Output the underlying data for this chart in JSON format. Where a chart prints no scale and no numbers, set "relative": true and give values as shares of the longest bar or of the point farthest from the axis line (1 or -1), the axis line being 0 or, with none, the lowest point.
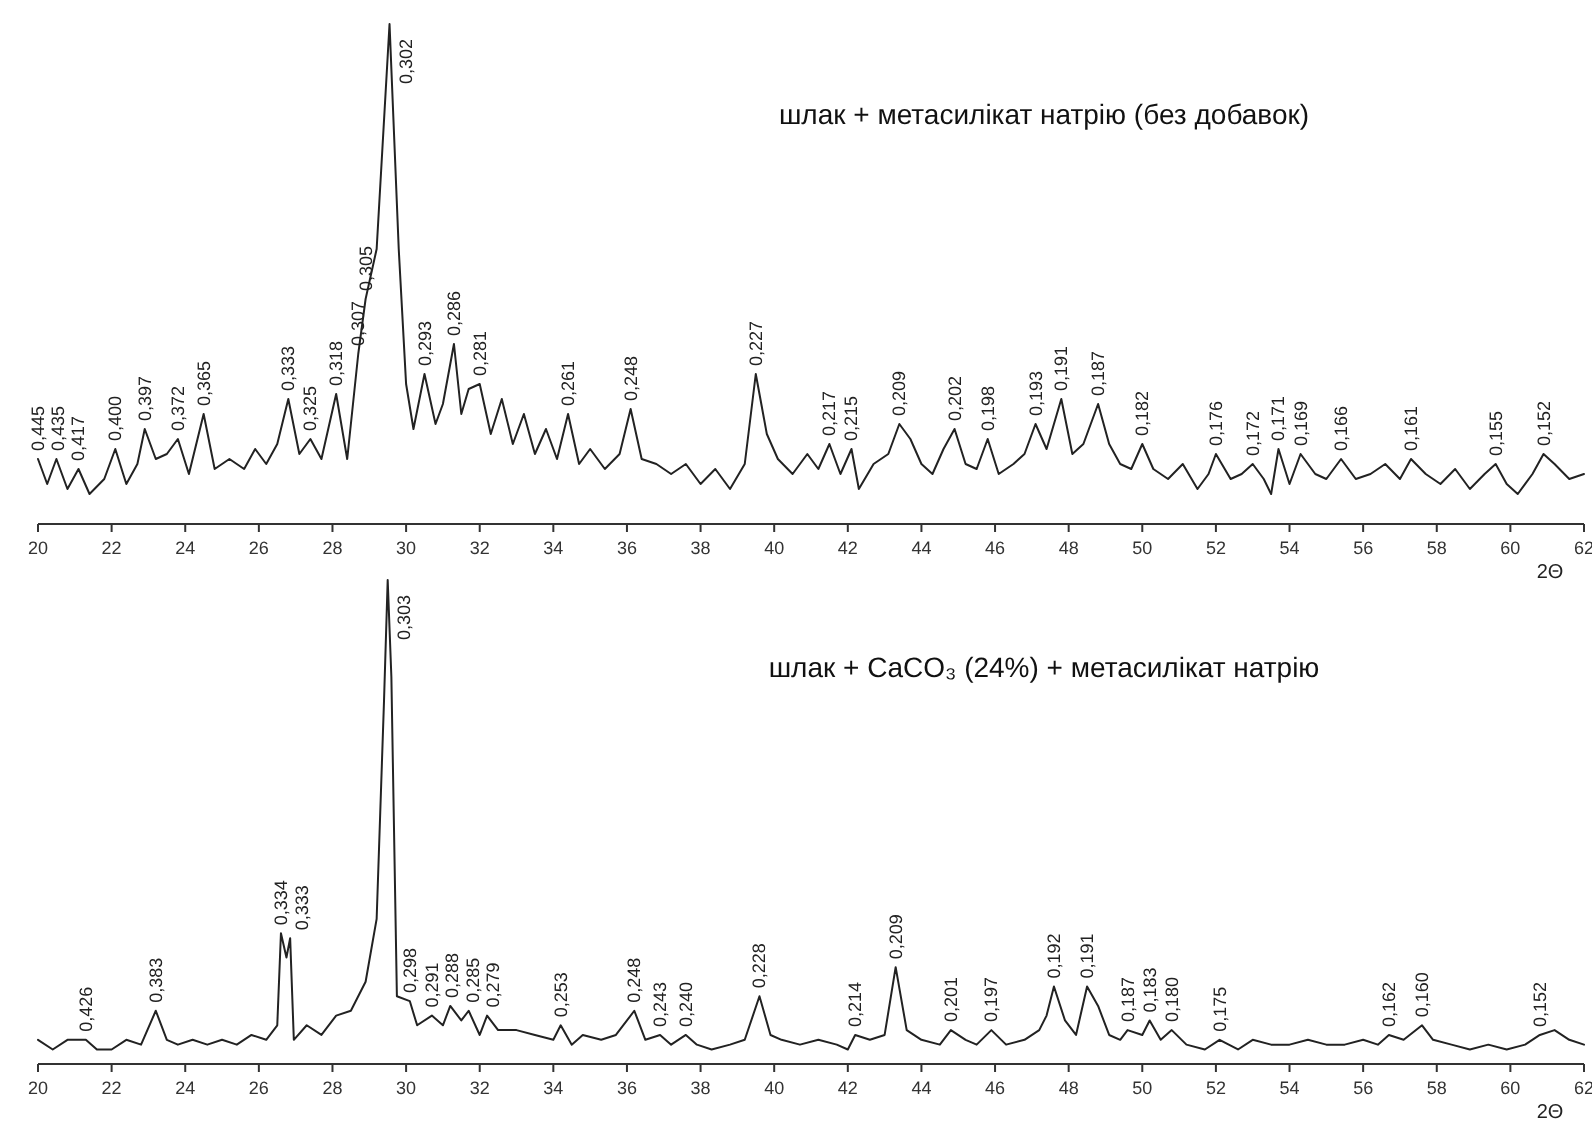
{
  "chart_data": [
    {
      "type": "line",
      "title": "шлак + метасилікат натрію (без добавок)",
      "xlabel": "2Θ",
      "relative": true,
      "xlim": [
        20,
        62
      ],
      "xticks": [
        20,
        22,
        24,
        26,
        28,
        30,
        32,
        34,
        36,
        38,
        40,
        42,
        44,
        46,
        48,
        50,
        52,
        54,
        56,
        58,
        60,
        62
      ],
      "series": [
        {
          "color": "#222222",
          "x": [
            20,
            20.25,
            20.5,
            20.8,
            21.1,
            21.4,
            21.8,
            22.1,
            22.4,
            22.7,
            22.9,
            23.2,
            23.5,
            23.8,
            24.1,
            24.5,
            24.8,
            25.2,
            25.6,
            25.9,
            26.2,
            26.5,
            26.8,
            27.1,
            27.4,
            27.7,
            28.1,
            28.4,
            28.7,
            28.9,
            29.2,
            29.55,
            29.8,
            30.0,
            30.2,
            30.5,
            30.8,
            31.0,
            31.3,
            31.5,
            31.7,
            32.0,
            32.3,
            32.6,
            32.9,
            33.2,
            33.5,
            33.8,
            34.1,
            34.4,
            34.7,
            35.0,
            35.4,
            35.8,
            36.1,
            36.4,
            36.8,
            37.2,
            37.6,
            38.0,
            38.4,
            38.8,
            39.2,
            39.5,
            39.8,
            40.1,
            40.5,
            40.9,
            41.2,
            41.5,
            41.8,
            42.1,
            42.3,
            42.7,
            43.1,
            43.4,
            43.7,
            44.0,
            44.3,
            44.6,
            44.9,
            45.2,
            45.5,
            45.8,
            46.1,
            46.5,
            46.8,
            47.1,
            47.4,
            47.8,
            48.1,
            48.4,
            48.8,
            49.1,
            49.4,
            49.7,
            50.0,
            50.3,
            50.7,
            51.1,
            51.5,
            51.8,
            52.0,
            52.4,
            52.7,
            53.0,
            53.3,
            53.5,
            53.7,
            54.0,
            54.3,
            54.7,
            55.0,
            55.4,
            55.8,
            56.2,
            56.6,
            57.0,
            57.3,
            57.7,
            58.1,
            58.5,
            58.9,
            59.3,
            59.6,
            59.9,
            60.2,
            60.6,
            60.9,
            61.2,
            61.6,
            62
          ],
          "values": [
            0.13,
            0.08,
            0.13,
            0.07,
            0.11,
            0.06,
            0.09,
            0.15,
            0.08,
            0.12,
            0.19,
            0.13,
            0.14,
            0.17,
            0.1,
            0.22,
            0.11,
            0.13,
            0.11,
            0.15,
            0.12,
            0.16,
            0.25,
            0.14,
            0.17,
            0.13,
            0.26,
            0.13,
            0.34,
            0.45,
            0.55,
            1,
            0.55,
            0.28,
            0.19,
            0.3,
            0.2,
            0.24,
            0.36,
            0.22,
            0.27,
            0.28,
            0.18,
            0.25,
            0.16,
            0.22,
            0.14,
            0.19,
            0.13,
            0.22,
            0.12,
            0.15,
            0.11,
            0.14,
            0.23,
            0.13,
            0.12,
            0.1,
            0.12,
            0.08,
            0.11,
            0.07,
            0.12,
            0.3,
            0.18,
            0.13,
            0.1,
            0.14,
            0.11,
            0.16,
            0.1,
            0.15,
            0.07,
            0.12,
            0.14,
            0.2,
            0.17,
            0.12,
            0.1,
            0.15,
            0.19,
            0.12,
            0.11,
            0.17,
            0.1,
            0.12,
            0.14,
            0.2,
            0.15,
            0.25,
            0.14,
            0.16,
            0.24,
            0.16,
            0.12,
            0.11,
            0.16,
            0.11,
            0.09,
            0.12,
            0.07,
            0.1,
            0.14,
            0.09,
            0.1,
            0.12,
            0.09,
            0.06,
            0.15,
            0.08,
            0.14,
            0.1,
            0.09,
            0.13,
            0.09,
            0.1,
            0.12,
            0.09,
            0.13,
            0.1,
            0.08,
            0.11,
            0.07,
            0.1,
            0.12,
            0.08,
            0.06,
            0.1,
            0.14,
            0.12,
            0.09,
            0.1
          ]
        }
      ],
      "annotations": [
        {
          "text": "0,445",
          "x": 20,
          "y": 0.13
        },
        {
          "text": "0,435",
          "x": 20.5,
          "y": 0.13
        },
        {
          "text": "0,417",
          "x": 21.1,
          "y": 0.11
        },
        {
          "text": "0,400",
          "x": 22.1,
          "y": 0.15
        },
        {
          "text": "0,397",
          "x": 22.9,
          "y": 0.19
        },
        {
          "text": "0,372",
          "x": 23.8,
          "y": 0.17
        },
        {
          "text": "0,365",
          "x": 24.5,
          "y": 0.22
        },
        {
          "text": "0,333",
          "x": 26.8,
          "y": 0.25
        },
        {
          "text": "0,325",
          "x": 27.4,
          "y": 0.17
        },
        {
          "text": "0,318",
          "x": 28.1,
          "y": 0.26
        },
        {
          "text": "0,307",
          "x": 28.7,
          "y": 0.34
        },
        {
          "text": "0,305",
          "x": 28.9,
          "y": 0.45
        },
        {
          "text": "0,302",
          "x": 29.55,
          "y": 1
        },
        {
          "text": "0,293",
          "x": 30.5,
          "y": 0.3
        },
        {
          "text": "0,286",
          "x": 31.3,
          "y": 0.36
        },
        {
          "text": "0,281",
          "x": 32.0,
          "y": 0.28
        },
        {
          "text": "0,261",
          "x": 34.4,
          "y": 0.22
        },
        {
          "text": "0,248",
          "x": 36.1,
          "y": 0.23
        },
        {
          "text": "0,227",
          "x": 39.5,
          "y": 0.3
        },
        {
          "text": "0,217",
          "x": 41.5,
          "y": 0.16
        },
        {
          "text": "0,215",
          "x": 42.1,
          "y": 0.15
        },
        {
          "text": "0,209",
          "x": 43.4,
          "y": 0.2
        },
        {
          "text": "0,202",
          "x": 44.9,
          "y": 0.19
        },
        {
          "text": "0,198",
          "x": 45.8,
          "y": 0.17
        },
        {
          "text": "0,193",
          "x": 47.1,
          "y": 0.2
        },
        {
          "text": "0,191",
          "x": 47.8,
          "y": 0.25
        },
        {
          "text": "0,187",
          "x": 48.8,
          "y": 0.24
        },
        {
          "text": "0,182",
          "x": 50.0,
          "y": 0.16
        },
        {
          "text": "0,176",
          "x": 52.0,
          "y": 0.14
        },
        {
          "text": "0,172",
          "x": 53.0,
          "y": 0.12
        },
        {
          "text": "0,171",
          "x": 53.7,
          "y": 0.15
        },
        {
          "text": "0,169",
          "x": 54.3,
          "y": 0.14
        },
        {
          "text": "0,166",
          "x": 55.4,
          "y": 0.13
        },
        {
          "text": "0,161",
          "x": 57.3,
          "y": 0.13
        },
        {
          "text": "0,155",
          "x": 59.6,
          "y": 0.12
        },
        {
          "text": "0,152",
          "x": 60.9,
          "y": 0.14
        }
      ]
    },
    {
      "type": "line",
      "title": "шлак + CaCO₃ (24%) + метасилікат натрію",
      "xlabel": "2Θ",
      "relative": true,
      "xlim": [
        20,
        62
      ],
      "xticks": [
        20,
        22,
        24,
        26,
        28,
        30,
        32,
        34,
        36,
        38,
        40,
        42,
        44,
        46,
        48,
        50,
        52,
        54,
        56,
        58,
        60,
        62
      ],
      "series": [
        {
          "color": "#222222",
          "x": [
            20,
            20.4,
            20.8,
            21.3,
            21.6,
            22.0,
            22.4,
            22.8,
            23.2,
            23.5,
            23.8,
            24.2,
            24.6,
            25.0,
            25.4,
            25.8,
            26.2,
            26.5,
            26.6,
            26.75,
            26.85,
            26.95,
            27.3,
            27.7,
            28.1,
            28.5,
            28.9,
            29.2,
            29.4,
            29.5,
            29.6,
            29.75,
            30.1,
            30.3,
            30.7,
            31.0,
            31.2,
            31.5,
            31.7,
            32.0,
            32.2,
            32.5,
            33.0,
            33.5,
            34.0,
            34.2,
            34.5,
            34.8,
            35.3,
            35.7,
            36.2,
            36.5,
            36.9,
            37.2,
            37.6,
            37.9,
            38.3,
            38.8,
            39.2,
            39.6,
            39.9,
            40.2,
            40.7,
            41.2,
            41.7,
            42.0,
            42.2,
            42.6,
            43.0,
            43.3,
            43.6,
            44.0,
            44.5,
            44.8,
            45.2,
            45.5,
            45.9,
            46.3,
            46.8,
            47.2,
            47.4,
            47.6,
            47.9,
            48.2,
            48.5,
            48.8,
            49.1,
            49.4,
            49.6,
            50.0,
            50.2,
            50.5,
            50.8,
            51.2,
            51.7,
            52.1,
            52.6,
            53.0,
            53.5,
            54.0,
            54.5,
            55.0,
            55.5,
            56.0,
            56.4,
            56.7,
            57.1,
            57.6,
            57.9,
            58.4,
            58.9,
            59.4,
            59.9,
            60.4,
            60.8,
            61.2,
            61.6,
            62
          ],
          "values": [
            0.05,
            0.03,
            0.05,
            0.05,
            0.03,
            0.03,
            0.05,
            0.04,
            0.11,
            0.05,
            0.04,
            0.05,
            0.04,
            0.05,
            0.04,
            0.06,
            0.05,
            0.08,
            0.27,
            0.22,
            0.26,
            0.05,
            0.08,
            0.06,
            0.1,
            0.11,
            0.17,
            0.3,
            0.75,
            1,
            0.8,
            0.14,
            0.13,
            0.08,
            0.1,
            0.08,
            0.12,
            0.09,
            0.11,
            0.06,
            0.1,
            0.07,
            0.07,
            0.06,
            0.05,
            0.08,
            0.04,
            0.06,
            0.05,
            0.06,
            0.11,
            0.05,
            0.06,
            0.04,
            0.06,
            0.04,
            0.03,
            0.04,
            0.05,
            0.14,
            0.06,
            0.05,
            0.04,
            0.05,
            0.04,
            0.03,
            0.06,
            0.05,
            0.06,
            0.2,
            0.07,
            0.05,
            0.04,
            0.07,
            0.05,
            0.04,
            0.07,
            0.04,
            0.05,
            0.07,
            0.1,
            0.16,
            0.09,
            0.06,
            0.16,
            0.12,
            0.06,
            0.05,
            0.07,
            0.06,
            0.09,
            0.05,
            0.07,
            0.04,
            0.03,
            0.05,
            0.03,
            0.05,
            0.04,
            0.04,
            0.05,
            0.04,
            0.04,
            0.05,
            0.04,
            0.06,
            0.05,
            0.08,
            0.05,
            0.04,
            0.03,
            0.04,
            0.03,
            0.04,
            0.06,
            0.07,
            0.05,
            0.04
          ]
        }
      ],
      "annotations": [
        {
          "text": "0,426",
          "x": 21.3,
          "y": 0.05
        },
        {
          "text": "0,383",
          "x": 23.2,
          "y": 0.11
        },
        {
          "text": "0,334",
          "x": 26.6,
          "y": 0.27
        },
        {
          "text": "0,333",
          "x": 26.85,
          "y": 0.26
        },
        {
          "text": "0,303",
          "x": 29.5,
          "y": 1
        },
        {
          "text": "0,298",
          "x": 30.1,
          "y": 0.13
        },
        {
          "text": "0,291",
          "x": 30.7,
          "y": 0.1
        },
        {
          "text": "0,288",
          "x": 31.2,
          "y": 0.12
        },
        {
          "text": "0,285",
          "x": 31.7,
          "y": 0.11
        },
        {
          "text": "0,279",
          "x": 32.2,
          "y": 0.1
        },
        {
          "text": "0,253",
          "x": 34.2,
          "y": 0.08
        },
        {
          "text": "0,248",
          "x": 36.2,
          "y": 0.11
        },
        {
          "text": "0,243",
          "x": 36.9,
          "y": 0.06
        },
        {
          "text": "0,240",
          "x": 37.6,
          "y": 0.06
        },
        {
          "text": "0,228",
          "x": 39.6,
          "y": 0.14
        },
        {
          "text": "0,214",
          "x": 42.2,
          "y": 0.06
        },
        {
          "text": "0,209",
          "x": 43.3,
          "y": 0.2
        },
        {
          "text": "0,201",
          "x": 44.8,
          "y": 0.07
        },
        {
          "text": "0,197",
          "x": 45.9,
          "y": 0.07
        },
        {
          "text": "0,192",
          "x": 47.6,
          "y": 0.16
        },
        {
          "text": "0,191",
          "x": 48.5,
          "y": 0.16
        },
        {
          "text": "0,187",
          "x": 49.6,
          "y": 0.07
        },
        {
          "text": "0,183",
          "x": 50.2,
          "y": 0.09
        },
        {
          "text": "0,180",
          "x": 50.8,
          "y": 0.07
        },
        {
          "text": "0,175",
          "x": 52.1,
          "y": 0.05
        },
        {
          "text": "0,162",
          "x": 56.7,
          "y": 0.06
        },
        {
          "text": "0,160",
          "x": 57.6,
          "y": 0.08
        },
        {
          "text": "0,152",
          "x": 60.8,
          "y": 0.06
        }
      ]
    }
  ]
}
